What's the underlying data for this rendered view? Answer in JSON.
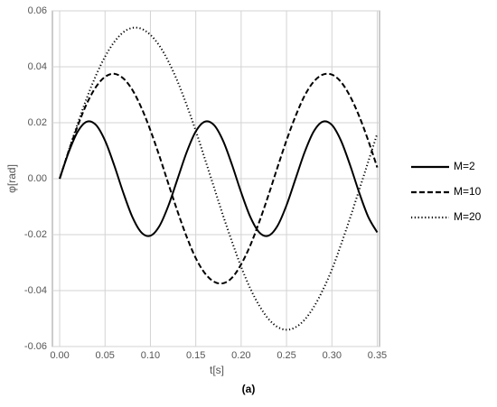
{
  "chart_data": {
    "type": "line",
    "x_label": "t[s]",
    "y_label": "φ[rad]",
    "caption": "(a)",
    "x": [
      0,
      0.01,
      0.02,
      0.03,
      0.04,
      0.05,
      0.06,
      0.07,
      0.08,
      0.09,
      0.1,
      0.11,
      0.12,
      0.13,
      0.14,
      0.15,
      0.16,
      0.17,
      0.18,
      0.19,
      0.2,
      0.21,
      0.22,
      0.23,
      0.24,
      0.25,
      0.26,
      0.27,
      0.28,
      0.29,
      0.3,
      0.31,
      0.32,
      0.33,
      0.34,
      0.35
    ],
    "series": [
      {
        "name": "M=2",
        "color": "#000000",
        "dash": "solid",
        "values": [
          0,
          0.0095,
          0.0169,
          0.0204,
          0.0192,
          0.0136,
          0.0049,
          -0.0049,
          -0.0136,
          -0.0192,
          -0.0204,
          -0.0169,
          -0.0095,
          0,
          0.0095,
          0.0169,
          0.0204,
          0.0192,
          0.0136,
          0.0049,
          -0.0049,
          -0.0136,
          -0.0192,
          -0.0204,
          -0.0169,
          -0.0095,
          0,
          0.0095,
          0.0169,
          0.0204,
          0.0192,
          0.0136,
          0.0049,
          -0.0049,
          -0.0136,
          -0.0192
        ]
      },
      {
        "name": "M=10",
        "color": "#000000",
        "dash": "dashed",
        "values": [
          0,
          0.0099,
          0.019,
          0.0269,
          0.0328,
          0.0364,
          0.0375,
          0.0359,
          0.0318,
          0.0254,
          0.0173,
          0.008,
          -0.002,
          -0.0118,
          -0.0208,
          -0.0284,
          -0.0338,
          -0.0368,
          -0.0374,
          -0.0354,
          -0.0306,
          -0.0239,
          -0.0154,
          -0.006,
          0.004,
          0.0137,
          0.0224,
          0.0297,
          0.0347,
          0.0372,
          0.0372,
          0.0346,
          0.0295,
          0.0224,
          0.0137,
          0.004
        ]
      },
      {
        "name": "M=20",
        "color": "#000000",
        "dash": "dotted",
        "values": [
          0,
          0.0101,
          0.0198,
          0.0289,
          0.0369,
          0.0436,
          0.0488,
          0.0523,
          0.0539,
          0.0536,
          0.0514,
          0.0475,
          0.0418,
          0.0347,
          0.0263,
          0.0171,
          0.0071,
          -0.003,
          -0.0131,
          -0.0226,
          -0.0315,
          -0.0392,
          -0.0454,
          -0.0501,
          -0.053,
          -0.054,
          -0.0531,
          -0.0504,
          -0.0459,
          -0.0398,
          -0.0325,
          -0.0236,
          -0.0141,
          -0.0041,
          0.006,
          0.0161
        ]
      }
    ],
    "xlim": [
      -0.008,
      0.3525
    ],
    "ylim": [
      -0.06,
      0.06
    ],
    "xticks": [
      {
        "value": 0,
        "label": "0.00"
      },
      0.05,
      {
        "value": 0.1,
        "label": "0.10"
      },
      0.15,
      {
        "value": 0.2,
        "label": "0.20"
      },
      0.25,
      {
        "value": 0.3,
        "label": "0.30"
      },
      0.35
    ],
    "yticks": [
      {
        "value": -0.06,
        "label": "-0.06"
      },
      {
        "value": -0.04,
        "label": "-0.04"
      },
      {
        "value": -0.02,
        "label": "-0.02"
      },
      {
        "value": 0,
        "label": "0.00"
      },
      0.02,
      0.04,
      0.06
    ],
    "grid": true,
    "legend": "right"
  }
}
